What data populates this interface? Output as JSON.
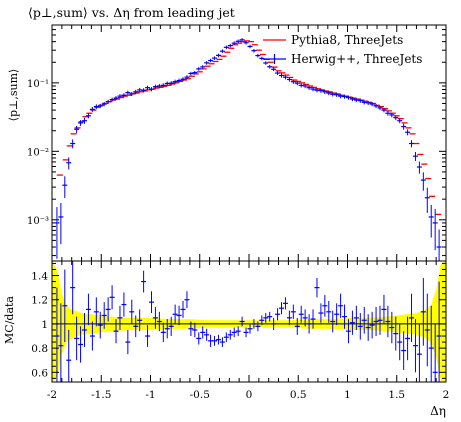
{
  "figure": {
    "title": "⟨p⊥,sum⟩ vs. Δη from leading jet",
    "top_ylabel": "⟨p⊥,sum⟩",
    "ratio_ylabel": "MC/data",
    "xlabel": "Δη"
  },
  "chart_data": [
    {
      "type": "scatter",
      "panel": "main",
      "title": "⟨p⊥,sum⟩ vs. Δη from leading jet",
      "xlabel": "Δη",
      "ylabel": "⟨p⊥,sum⟩",
      "xlim": [
        -2,
        2
      ],
      "ylim": [
        0.00025,
        0.7
      ],
      "yscale": "log",
      "x_ticks": [],
      "y_ticks": [
        {
          "value": 0.1,
          "label": "10⁻¹"
        },
        {
          "value": 0.01,
          "label": "10⁻²"
        },
        {
          "value": 0.001,
          "label": "10⁻³"
        }
      ],
      "legend_position": "top-right",
      "series": [
        {
          "name": "Pythia8, ThreeJets",
          "color": "#ff0000",
          "style": "step-hist",
          "x": [
            -1.92,
            -1.86,
            -1.82,
            -1.78,
            -1.74,
            -1.7,
            -1.66,
            -1.62,
            -1.58,
            -1.54,
            -1.5,
            -1.46,
            -1.42,
            -1.38,
            -1.34,
            -1.3,
            -1.26,
            -1.22,
            -1.18,
            -1.14,
            -1.1,
            -1.06,
            -1.02,
            -0.98,
            -0.94,
            -0.9,
            -0.86,
            -0.82,
            -0.78,
            -0.74,
            -0.7,
            -0.66,
            -0.62,
            -0.58,
            -0.54,
            -0.5,
            -0.46,
            -0.42,
            -0.38,
            -0.34,
            -0.3,
            -0.26,
            -0.22,
            -0.18,
            -0.14,
            -0.1,
            -0.06,
            -0.02,
            0.02,
            0.06,
            0.1,
            0.14,
            0.18,
            0.22,
            0.26,
            0.3,
            0.34,
            0.38,
            0.42,
            0.46,
            0.5,
            0.54,
            0.58,
            0.62,
            0.66,
            0.7,
            0.74,
            0.78,
            0.82,
            0.86,
            0.9,
            0.94,
            0.98,
            1.02,
            1.06,
            1.1,
            1.14,
            1.18,
            1.22,
            1.26,
            1.3,
            1.34,
            1.38,
            1.42,
            1.46,
            1.5,
            1.54,
            1.58,
            1.62,
            1.66,
            1.7,
            1.74,
            1.78,
            1.82,
            1.86,
            1.92
          ],
          "y": [
            0.0045,
            0.0075,
            0.012,
            0.018,
            0.022,
            0.027,
            0.032,
            0.036,
            0.04,
            0.044,
            0.047,
            0.05,
            0.053,
            0.056,
            0.058,
            0.061,
            0.064,
            0.066,
            0.069,
            0.071,
            0.074,
            0.076,
            0.079,
            0.081,
            0.084,
            0.086,
            0.089,
            0.092,
            0.096,
            0.1,
            0.105,
            0.11,
            0.115,
            0.125,
            0.135,
            0.145,
            0.16,
            0.175,
            0.19,
            0.205,
            0.22,
            0.245,
            0.28,
            0.32,
            0.36,
            0.38,
            0.4,
            0.41,
            0.4,
            0.36,
            0.3,
            0.26,
            0.22,
            0.2,
            0.17,
            0.15,
            0.14,
            0.13,
            0.12,
            0.11,
            0.105,
            0.1,
            0.095,
            0.09,
            0.086,
            0.082,
            0.079,
            0.076,
            0.074,
            0.071,
            0.069,
            0.066,
            0.064,
            0.062,
            0.06,
            0.058,
            0.056,
            0.054,
            0.052,
            0.05,
            0.047,
            0.045,
            0.042,
            0.039,
            0.036,
            0.033,
            0.03,
            0.026,
            0.022,
            0.018,
            0.013,
            0.009,
            0.0065,
            0.004,
            0.0022,
            0.0012
          ]
        },
        {
          "name": "Herwig++, ThreeJets",
          "color": "#0000ff",
          "style": "points-with-errors",
          "x": [
            -1.95,
            -1.91,
            -1.87,
            -1.83,
            -1.79,
            -1.75,
            -1.71,
            -1.67,
            -1.63,
            -1.59,
            -1.55,
            -1.51,
            -1.47,
            -1.43,
            -1.39,
            -1.35,
            -1.31,
            -1.27,
            -1.23,
            -1.19,
            -1.15,
            -1.11,
            -1.07,
            -1.03,
            -0.99,
            -0.95,
            -0.91,
            -0.87,
            -0.83,
            -0.79,
            -0.75,
            -0.71,
            -0.67,
            -0.63,
            -0.59,
            -0.55,
            -0.51,
            -0.47,
            -0.43,
            -0.39,
            -0.35,
            -0.31,
            -0.27,
            -0.23,
            -0.19,
            -0.15,
            -0.11,
            -0.07,
            -0.03,
            0.01,
            0.05,
            0.09,
            0.13,
            0.17,
            0.21,
            0.25,
            0.29,
            0.33,
            0.37,
            0.41,
            0.45,
            0.49,
            0.53,
            0.57,
            0.61,
            0.65,
            0.69,
            0.73,
            0.77,
            0.81,
            0.85,
            0.89,
            0.93,
            0.97,
            1.01,
            1.05,
            1.09,
            1.13,
            1.17,
            1.21,
            1.25,
            1.29,
            1.33,
            1.37,
            1.41,
            1.45,
            1.49,
            1.53,
            1.57,
            1.61,
            1.65,
            1.69,
            1.73,
            1.77,
            1.81,
            1.85,
            1.89,
            1.93
          ],
          "y": [
            0.0009,
            0.0011,
            0.0032,
            0.0068,
            0.013,
            0.021,
            0.026,
            0.028,
            0.033,
            0.041,
            0.045,
            0.046,
            0.049,
            0.053,
            0.057,
            0.06,
            0.064,
            0.066,
            0.072,
            0.069,
            0.074,
            0.079,
            0.078,
            0.085,
            0.081,
            0.088,
            0.09,
            0.092,
            0.098,
            0.099,
            0.104,
            0.108,
            0.113,
            0.121,
            0.137,
            0.141,
            0.16,
            0.171,
            0.196,
            0.212,
            0.23,
            0.252,
            0.29,
            0.33,
            0.35,
            0.38,
            0.405,
            0.425,
            0.385,
            0.34,
            0.295,
            0.25,
            0.228,
            0.195,
            0.172,
            0.158,
            0.139,
            0.128,
            0.121,
            0.112,
            0.104,
            0.099,
            0.092,
            0.09,
            0.085,
            0.081,
            0.078,
            0.077,
            0.074,
            0.071,
            0.068,
            0.067,
            0.064,
            0.063,
            0.061,
            0.058,
            0.056,
            0.055,
            0.052,
            0.051,
            0.049,
            0.046,
            0.043,
            0.04,
            0.036,
            0.034,
            0.031,
            0.028,
            0.023,
            0.019,
            0.013,
            0.0085,
            0.0059,
            0.0038,
            0.0021,
            0.0011,
            0.0009,
            0.0004
          ],
          "yerr_frac": [
            0.7,
            0.6,
            0.35,
            0.2,
            0.15,
            0.12,
            0.1,
            0.1,
            0.08,
            0.08,
            0.08,
            0.07,
            0.07,
            0.07,
            0.07,
            0.07,
            0.07,
            0.07,
            0.07,
            0.07,
            0.07,
            0.07,
            0.07,
            0.07,
            0.07,
            0.07,
            0.07,
            0.07,
            0.07,
            0.07,
            0.07,
            0.07,
            0.07,
            0.07,
            0.06,
            0.06,
            0.06,
            0.06,
            0.06,
            0.06,
            0.06,
            0.06,
            0.06,
            0.06,
            0.06,
            0.06,
            0.06,
            0.06,
            0.06,
            0.06,
            0.06,
            0.06,
            0.06,
            0.06,
            0.06,
            0.06,
            0.06,
            0.07,
            0.07,
            0.07,
            0.07,
            0.07,
            0.07,
            0.07,
            0.07,
            0.07,
            0.07,
            0.07,
            0.07,
            0.07,
            0.07,
            0.07,
            0.07,
            0.07,
            0.07,
            0.07,
            0.07,
            0.07,
            0.07,
            0.07,
            0.07,
            0.07,
            0.07,
            0.07,
            0.08,
            0.08,
            0.08,
            0.08,
            0.1,
            0.1,
            0.12,
            0.15,
            0.2,
            0.3,
            0.4,
            0.5,
            0.6,
            0.8
          ]
        }
      ]
    },
    {
      "type": "scatter",
      "panel": "ratio",
      "xlabel": "Δη",
      "ylabel": "MC/data",
      "xlim": [
        -2,
        2
      ],
      "ylim": [
        0.52,
        1.52
      ],
      "x_ticks": [
        {
          "value": -2,
          "label": "-2"
        },
        {
          "value": -1.5,
          "label": "-1.5"
        },
        {
          "value": -1,
          "label": "-1"
        },
        {
          "value": -0.5,
          "label": "-0.5"
        },
        {
          "value": 0,
          "label": "0"
        },
        {
          "value": 0.5,
          "label": "0.5"
        },
        {
          "value": 1,
          "label": "1"
        },
        {
          "value": 1.5,
          "label": "1.5"
        },
        {
          "value": 2,
          "label": "2"
        }
      ],
      "y_ticks": [
        {
          "value": 0.6,
          "label": "0.6"
        },
        {
          "value": 0.8,
          "label": "0.8"
        },
        {
          "value": 1.0,
          "label": "1"
        },
        {
          "value": 1.2,
          "label": "1.2"
        },
        {
          "value": 1.4,
          "label": "1.4"
        }
      ],
      "reference_line": 1.0,
      "uncertainty_band": {
        "color": "#ffff00",
        "x": [
          -2.0,
          -1.95,
          -1.9,
          -1.85,
          -1.8,
          -1.7,
          -1.6,
          -1.5,
          -1.4,
          -1.2,
          -1.0,
          -0.8,
          -0.6,
          -0.4,
          -0.2,
          0.0,
          0.2,
          0.4,
          0.6,
          0.8,
          1.0,
          1.2,
          1.4,
          1.5,
          1.6,
          1.7,
          1.8,
          1.85,
          1.9,
          1.95,
          2.0
        ],
        "up": [
          1.52,
          1.45,
          1.25,
          1.15,
          1.12,
          1.09,
          1.08,
          1.07,
          1.06,
          1.05,
          1.05,
          1.04,
          1.04,
          1.03,
          1.03,
          1.03,
          1.03,
          1.03,
          1.04,
          1.04,
          1.05,
          1.05,
          1.06,
          1.07,
          1.08,
          1.09,
          1.12,
          1.16,
          1.28,
          1.5,
          1.52
        ],
        "dn": [
          0.52,
          0.55,
          0.75,
          0.85,
          0.88,
          0.91,
          0.92,
          0.93,
          0.94,
          0.95,
          0.95,
          0.96,
          0.96,
          0.97,
          0.97,
          0.97,
          0.97,
          0.97,
          0.96,
          0.96,
          0.95,
          0.95,
          0.94,
          0.93,
          0.92,
          0.91,
          0.88,
          0.84,
          0.72,
          0.52,
          0.52
        ]
      },
      "series": [
        {
          "name": "Herwig++, ThreeJets",
          "color": "#0000ff",
          "x": [
            -1.95,
            -1.91,
            -1.87,
            -1.83,
            -1.79,
            -1.75,
            -1.71,
            -1.67,
            -1.63,
            -1.59,
            -1.55,
            -1.51,
            -1.47,
            -1.43,
            -1.39,
            -1.35,
            -1.31,
            -1.27,
            -1.23,
            -1.19,
            -1.15,
            -1.11,
            -1.07,
            -1.03,
            -0.99,
            -0.95,
            -0.91,
            -0.87,
            -0.83,
            -0.79,
            -0.75,
            -0.71,
            -0.67,
            -0.63,
            -0.59,
            -0.55,
            -0.51,
            -0.47,
            -0.43,
            -0.39,
            -0.35,
            -0.31,
            -0.27,
            -0.23,
            -0.19,
            -0.15,
            -0.11,
            -0.07,
            -0.03,
            0.01,
            0.05,
            0.09,
            0.13,
            0.17,
            0.21,
            0.25,
            0.29,
            0.33,
            0.37,
            0.41,
            0.45,
            0.49,
            0.53,
            0.57,
            0.61,
            0.65,
            0.69,
            0.73,
            0.77,
            0.81,
            0.85,
            0.89,
            0.93,
            0.97,
            1.01,
            1.05,
            1.09,
            1.13,
            1.17,
            1.21,
            1.25,
            1.29,
            1.33,
            1.37,
            1.41,
            1.45,
            1.49,
            1.53,
            1.57,
            1.61,
            1.65,
            1.69,
            1.73,
            1.77,
            1.81,
            1.85,
            1.89,
            1.93
          ],
          "y": [
            0.9,
            0.82,
            1.15,
            0.7,
            1.3,
            0.88,
            0.83,
            0.95,
            1.12,
            0.9,
            1.1,
            0.99,
            1.07,
            1.12,
            1.22,
            0.94,
            1.05,
            1.16,
            0.85,
            1.1,
            0.98,
            1.03,
            1.35,
            0.9,
            1.18,
            1.05,
            1.02,
            0.93,
            0.96,
            0.98,
            1.08,
            1.07,
            1.12,
            1.2,
            0.96,
            0.95,
            0.88,
            0.93,
            0.91,
            0.86,
            0.86,
            0.87,
            0.85,
            0.89,
            0.91,
            0.93,
            0.94,
            1.02,
            0.93,
            0.96,
            1.0,
            0.98,
            1.03,
            1.05,
            1.06,
            1.0,
            1.08,
            1.13,
            1.17,
            1.05,
            1.1,
            0.98,
            1.08,
            1.05,
            1.0,
            1.04,
            1.3,
            1.09,
            1.15,
            1.1,
            1.02,
            1.08,
            1.15,
            1.06,
            0.94,
            1.01,
            1.05,
            0.98,
            1.03,
            0.97,
            0.99,
            1.02,
            1.03,
            1.12,
            1.02,
            0.97,
            0.92,
            0.85,
            0.78,
            0.88,
            1.05,
            0.82,
            0.75,
            1.1,
            0.95,
            0.8,
            0.6,
            0.9
          ],
          "yerr": [
            0.4,
            0.35,
            0.3,
            0.25,
            0.22,
            0.18,
            0.15,
            0.14,
            0.13,
            0.12,
            0.12,
            0.11,
            0.11,
            0.1,
            0.1,
            0.1,
            0.1,
            0.1,
            0.1,
            0.1,
            0.09,
            0.09,
            0.09,
            0.09,
            0.09,
            0.09,
            0.08,
            0.08,
            0.08,
            0.08,
            0.08,
            0.08,
            0.07,
            0.07,
            0.06,
            0.06,
            0.05,
            0.05,
            0.05,
            0.05,
            0.04,
            0.04,
            0.04,
            0.04,
            0.04,
            0.04,
            0.04,
            0.04,
            0.04,
            0.04,
            0.04,
            0.04,
            0.04,
            0.04,
            0.04,
            0.05,
            0.05,
            0.05,
            0.05,
            0.06,
            0.06,
            0.07,
            0.07,
            0.07,
            0.08,
            0.08,
            0.08,
            0.08,
            0.09,
            0.09,
            0.09,
            0.09,
            0.1,
            0.1,
            0.1,
            0.1,
            0.1,
            0.11,
            0.11,
            0.11,
            0.11,
            0.12,
            0.12,
            0.12,
            0.13,
            0.13,
            0.14,
            0.15,
            0.16,
            0.18,
            0.2,
            0.22,
            0.25,
            0.28,
            0.3,
            0.35,
            0.4,
            0.45
          ]
        }
      ]
    }
  ]
}
